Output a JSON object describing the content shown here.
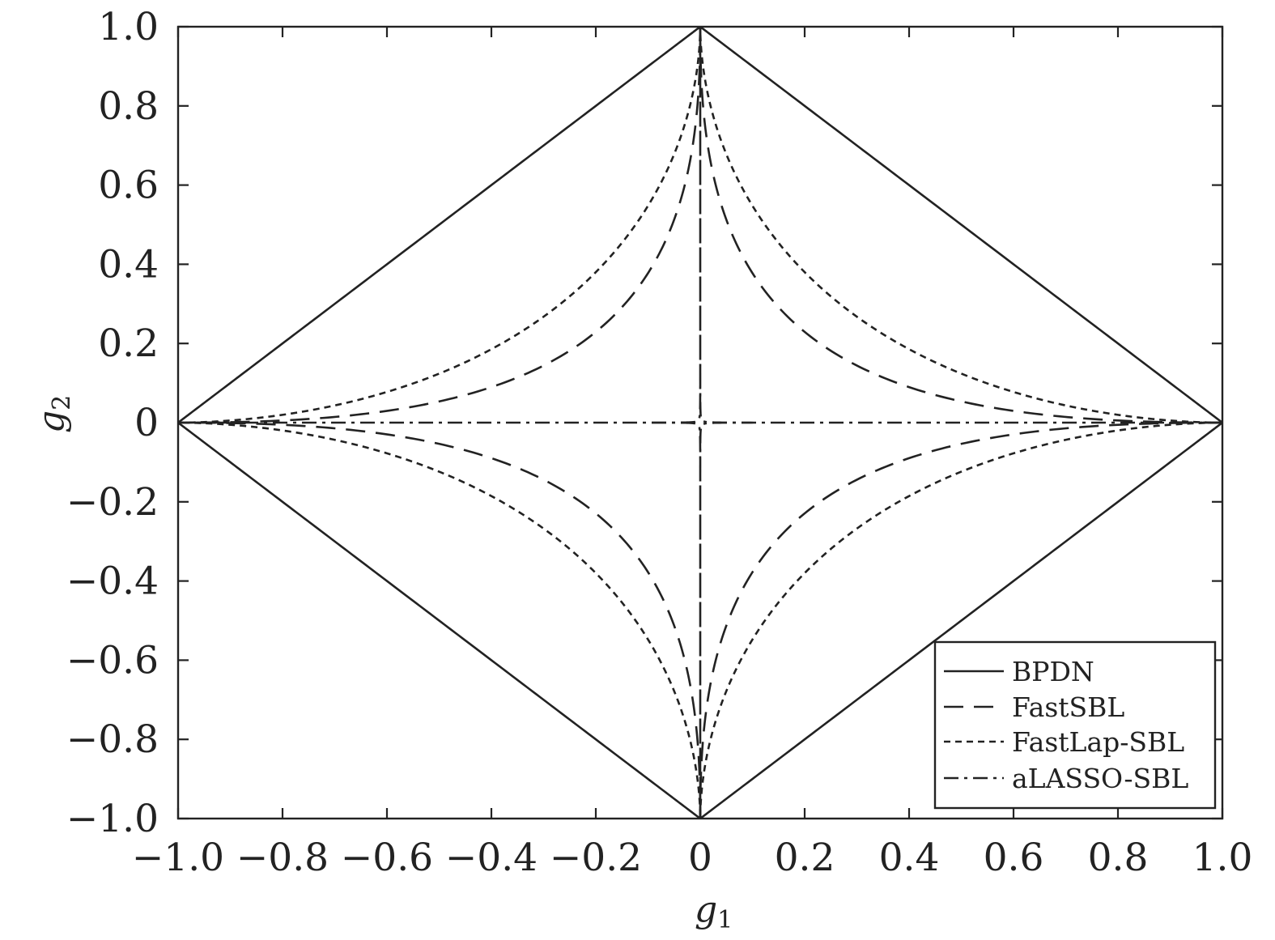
{
  "chart_data": {
    "type": "line",
    "title": "",
    "xlabel": "g",
    "xlabel_subscript": "1",
    "ylabel": "g",
    "ylabel_subscript": "2",
    "xlim": [
      -1.0,
      1.0
    ],
    "ylim": [
      -1.0,
      1.0
    ],
    "x_ticks": [
      -1.0,
      -0.8,
      -0.6,
      -0.4,
      -0.2,
      0,
      0.2,
      0.4,
      0.6,
      0.8,
      1.0
    ],
    "x_tick_labels": [
      "−1.0",
      "−0.8",
      "−0.6",
      "−0.4",
      "−0.2",
      "0",
      "0.2",
      "0.4",
      "0.6",
      "0.8",
      "1.0"
    ],
    "y_ticks": [
      1.0,
      0.8,
      0.6,
      0.4,
      0.2,
      0,
      -0.2,
      -0.4,
      -0.6,
      -0.8,
      -1.0
    ],
    "y_tick_labels": [
      "1.0",
      "0.8",
      "0.6",
      "0.4",
      "0.2",
      "0",
      "−0.2",
      "−0.4",
      "−0.6",
      "−0.8",
      "−1.0"
    ],
    "grid": false,
    "legend": {
      "position": "bottom-right"
    },
    "series": [
      {
        "name": "BPDN",
        "style": "solid",
        "curve_exponent": 1.0
      },
      {
        "name": "FastSBL",
        "style": "dashed",
        "curve_exponent": 0.45
      },
      {
        "name": "FastLap-SBL",
        "style": "dotted",
        "curve_exponent": 0.55
      },
      {
        "name": "aLASSO-SBL",
        "style": "dashdot",
        "curve_exponent": 0.13
      }
    ]
  }
}
